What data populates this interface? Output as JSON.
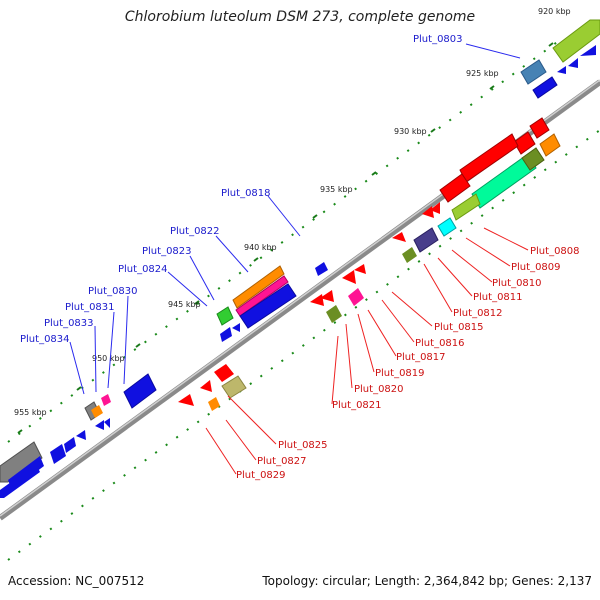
{
  "title": "Chlorobium luteolum DSM 273, complete genome",
  "accession_text": "Accession: NC_007512",
  "summary_text": "Topology: circular; Length: 2,364,842 bp; Genes: 2,137",
  "scale_labels": [
    "920 kbp",
    "925 kbp",
    "930 kbp",
    "935 kbp",
    "940 kbp",
    "945 kbp",
    "950 kbp",
    "955 kbp"
  ],
  "genes_upper": [
    "Plut_0803",
    "Plut_0818",
    "Plut_0822",
    "Plut_0823",
    "Plut_0824",
    "Plut_0830",
    "Plut_0831",
    "Plut_0833",
    "Plut_0834"
  ],
  "genes_lower": [
    "Plut_0808",
    "Plut_0809",
    "Plut_0810",
    "Plut_0811",
    "Plut_0812",
    "Plut_0815",
    "Plut_0816",
    "Plut_0817",
    "Plut_0819",
    "Plut_0820",
    "Plut_0821",
    "Plut_0825",
    "Plut_0827",
    "Plut_0829"
  ],
  "colors": {
    "backbone": "#7a7a7a",
    "forward_gene": "#1010e0",
    "reverse_gene": "#e01010",
    "tick": "#1a7a1a",
    "label_upper": "#1a1acc",
    "label_lower": "#cc1111"
  }
}
